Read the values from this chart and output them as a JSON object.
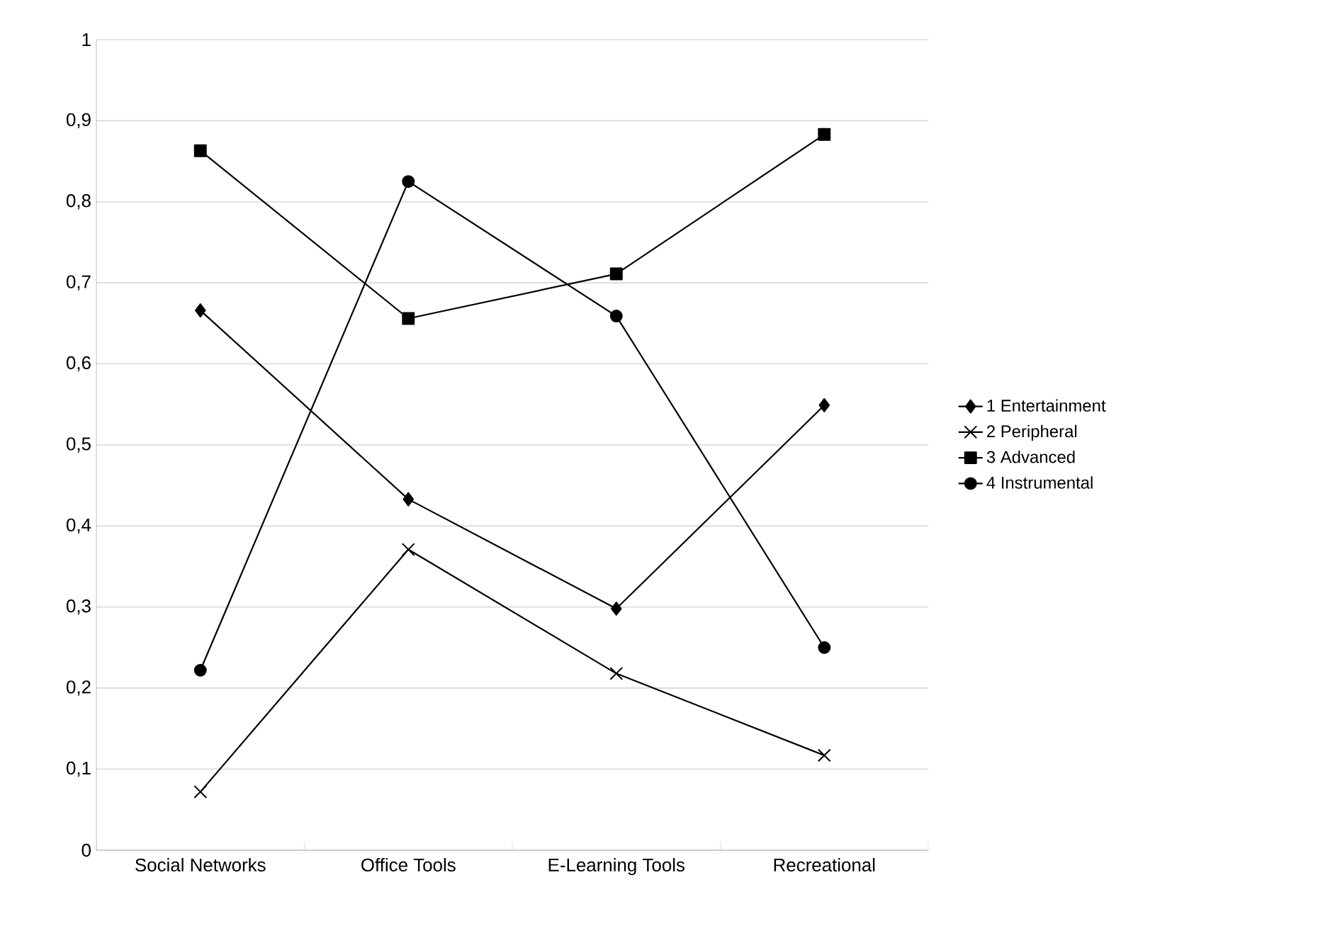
{
  "chart_data": {
    "type": "line",
    "categories": [
      "Social Networks",
      "Office Tools",
      "E-Learning Tools",
      "Recreational"
    ],
    "series": [
      {
        "name": "1 Entertainment",
        "color": "#000000",
        "marker": "diamond",
        "values": [
          0.666,
          0.433,
          0.298,
          0.549
        ]
      },
      {
        "name": "2 Peripheral",
        "color": "#000000",
        "marker": "cross",
        "values": [
          0.072,
          0.371,
          0.218,
          0.117
        ]
      },
      {
        "name": "3 Advanced",
        "color": "#000000",
        "marker": "square",
        "values": [
          0.863,
          0.656,
          0.711,
          0.883
        ]
      },
      {
        "name": "4 Instrumental",
        "color": "#000000",
        "marker": "circle",
        "values": [
          0.222,
          0.825,
          0.659,
          0.25
        ]
      }
    ],
    "ylim": [
      0,
      1
    ],
    "yticks": [
      0,
      {
        "value": 0.1,
        "label": "0,1"
      },
      {
        "value": 0.2,
        "label": "0,2"
      },
      {
        "value": 0.3,
        "label": "0,3"
      },
      {
        "value": 0.4,
        "label": "0,4"
      },
      {
        "value": 0.5,
        "label": "0,5"
      },
      {
        "value": 0.6,
        "label": "0,6"
      },
      {
        "value": 0.7,
        "label": "0,7"
      },
      {
        "value": 0.8,
        "label": "0,8"
      },
      {
        "value": 0.9,
        "label": "0,9"
      },
      1
    ],
    "grid": "y",
    "legend": "right",
    "line_style": "solid"
  }
}
